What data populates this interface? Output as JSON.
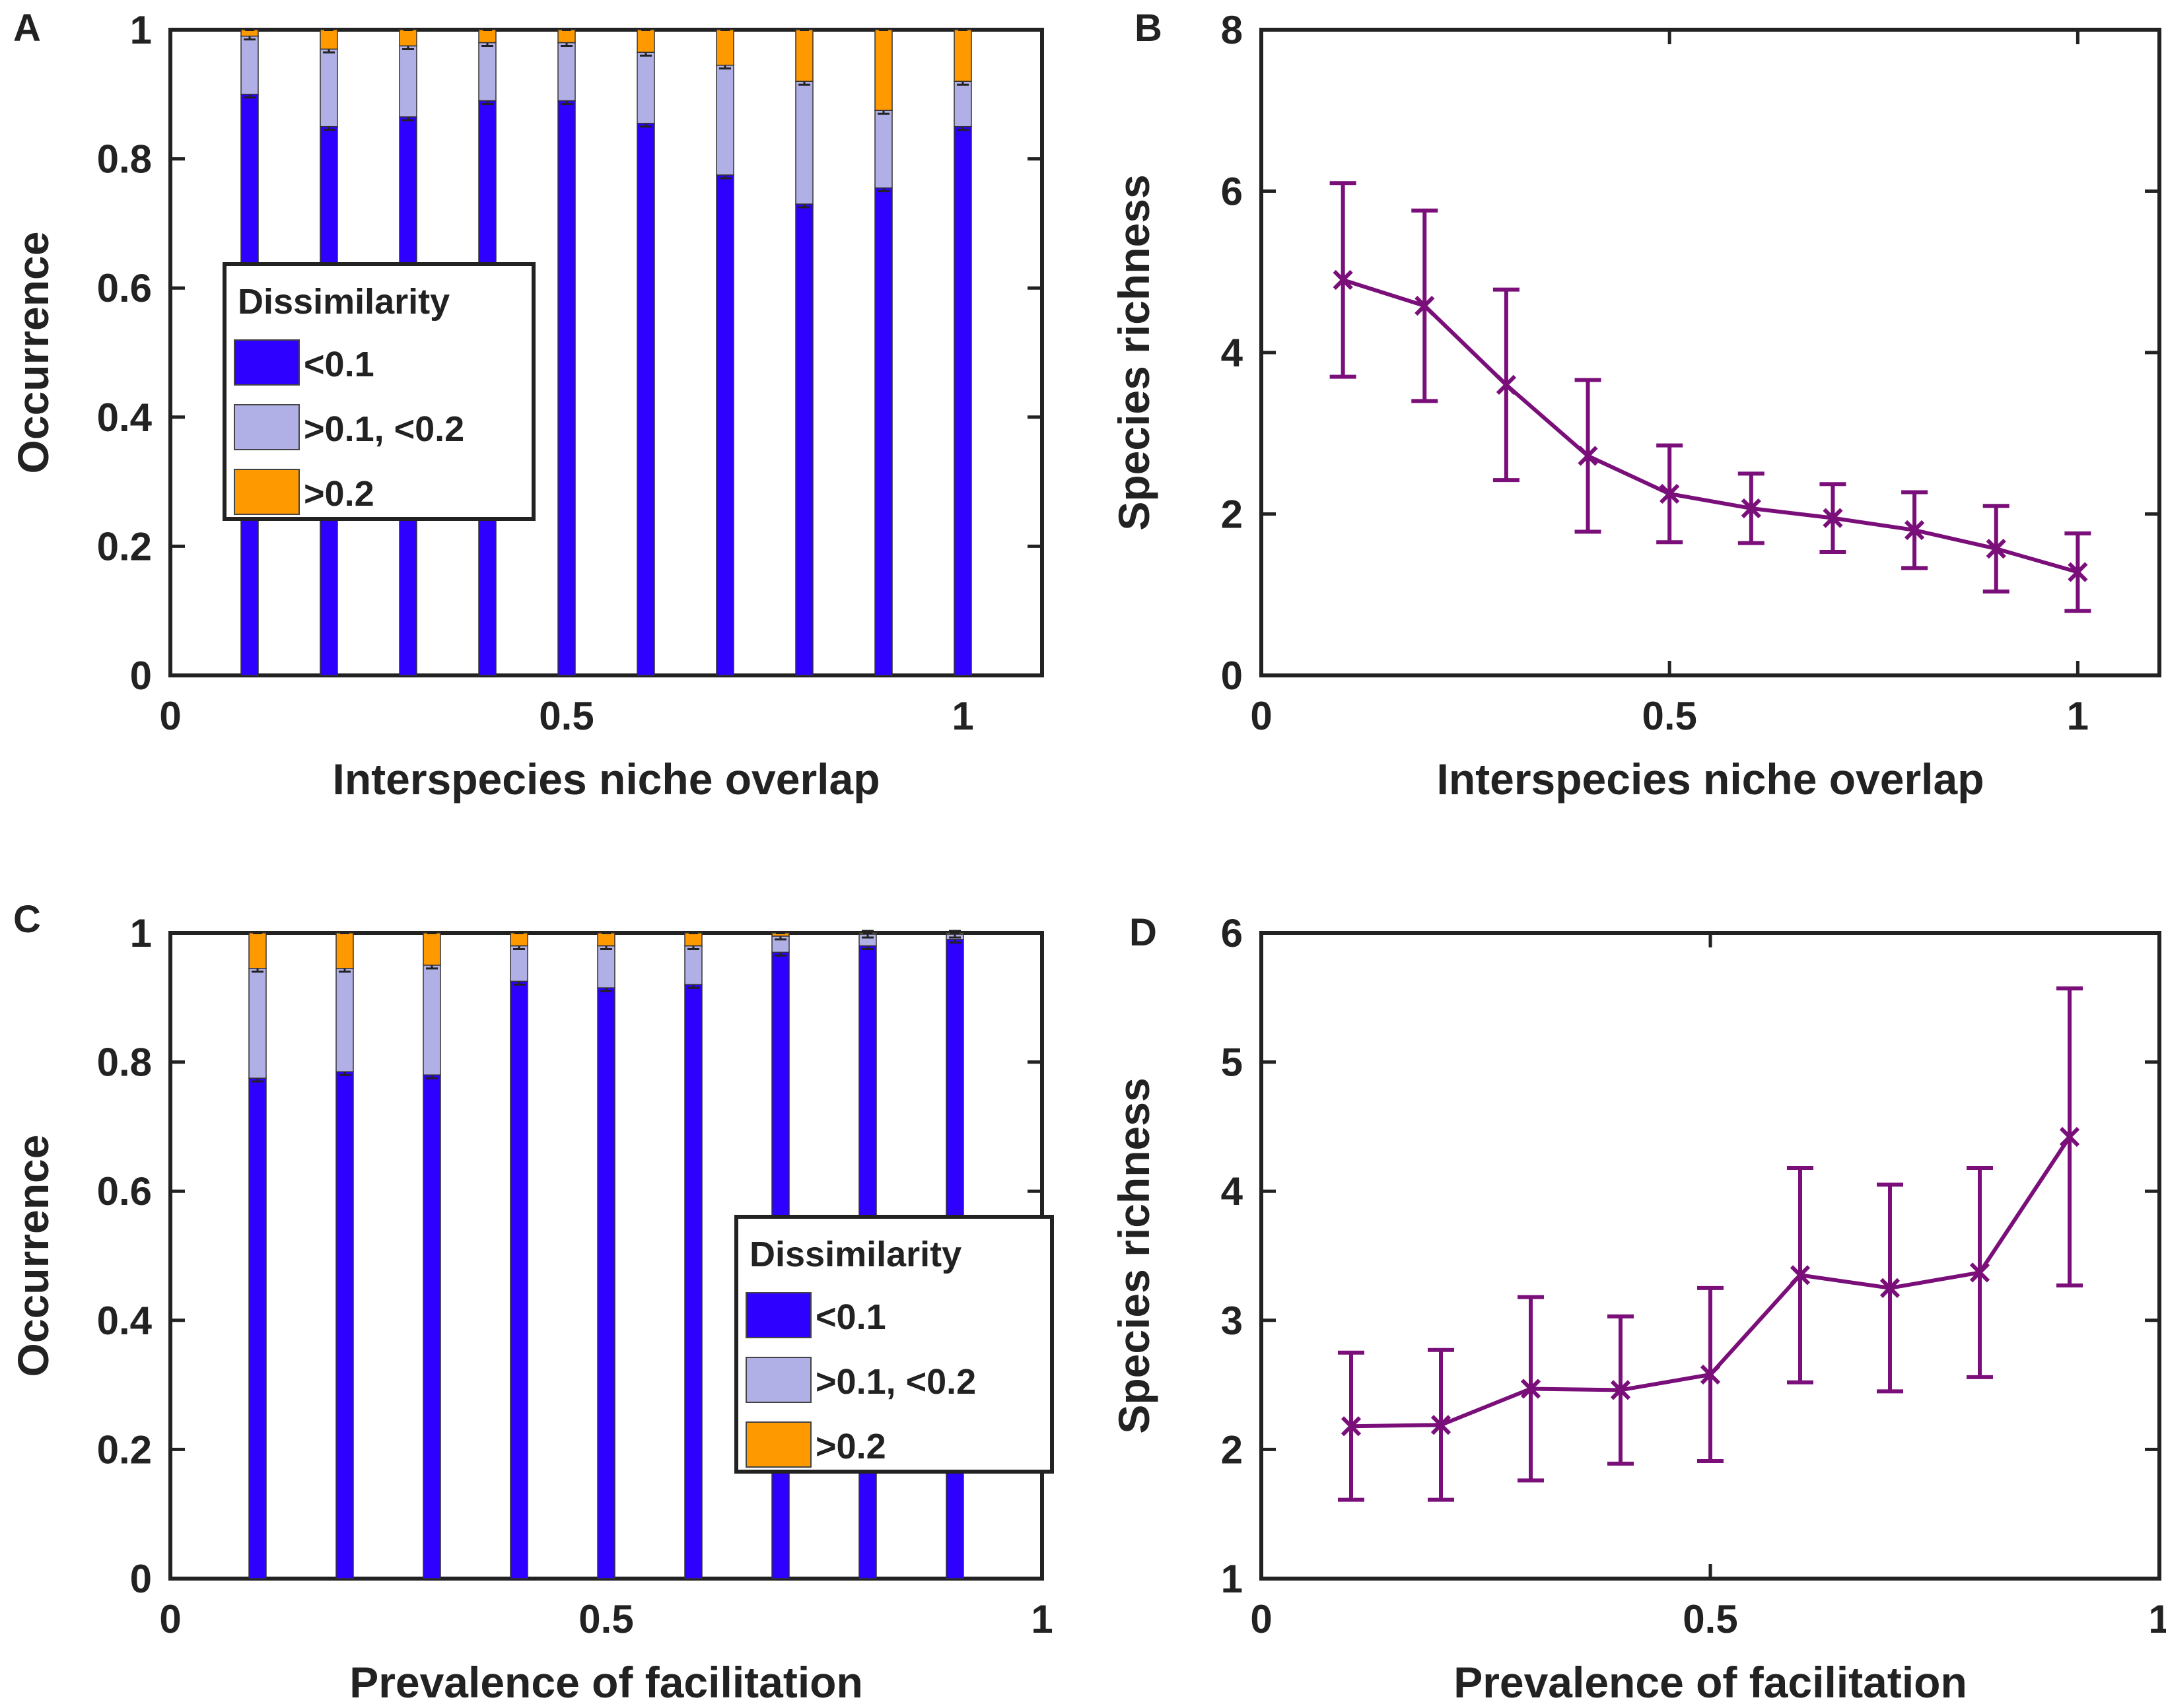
{
  "colors": {
    "lt01": "#2d00ff",
    "mid": "#b0b0e6",
    "gt02": "#ff9900",
    "line": "#7a0f7a",
    "axis": "#222222"
  },
  "legend": {
    "title": "Dissimilarity",
    "items": [
      {
        "label": "<0.1",
        "color_key": "lt01"
      },
      {
        "label": ">0.1, <0.2",
        "color_key": "mid"
      },
      {
        "label": ">0.2",
        "color_key": "gt02"
      }
    ]
  },
  "chart_data": [
    {
      "panel": "A",
      "type": "bar",
      "stacked": true,
      "xlabel": "Interspecies niche overlap",
      "ylabel": "Occurrence",
      "xlim": [
        0,
        1.1
      ],
      "ylim": [
        0,
        1
      ],
      "xticks": [
        0,
        0.5,
        1
      ],
      "xtick_labels": [
        "0",
        "0.5",
        "1"
      ],
      "yticks": [
        0,
        0.2,
        0.4,
        0.6,
        0.8,
        1
      ],
      "ytick_labels": [
        "0",
        "0.2",
        "0.4",
        "0.6",
        "0.8",
        "1"
      ],
      "legend_position": "center-left",
      "x": [
        0.1,
        0.2,
        0.3,
        0.4,
        0.5,
        0.6,
        0.7,
        0.8,
        0.9,
        1.0
      ],
      "series": [
        {
          "name": "<0.1",
          "values": [
            0.9,
            0.85,
            0.865,
            0.89,
            0.89,
            0.855,
            0.775,
            0.73,
            0.755,
            0.85
          ]
        },
        {
          "name": ">0.1, <0.2",
          "values": [
            0.09,
            0.12,
            0.11,
            0.09,
            0.09,
            0.11,
            0.17,
            0.19,
            0.12,
            0.07
          ]
        },
        {
          "name": ">0.2",
          "values": [
            0.01,
            0.03,
            0.025,
            0.02,
            0.02,
            0.035,
            0.055,
            0.08,
            0.125,
            0.08
          ]
        }
      ]
    },
    {
      "panel": "B",
      "type": "line",
      "xlabel": "Interspecies niche overlap",
      "ylabel": "Species richness",
      "xlim": [
        0,
        1.1
      ],
      "ylim": [
        0,
        8
      ],
      "xticks": [
        0,
        0.5,
        1
      ],
      "xtick_labels": [
        "0",
        "0.5",
        "1"
      ],
      "yticks": [
        0,
        2,
        4,
        6,
        8
      ],
      "ytick_labels": [
        "0",
        "2",
        "4",
        "6",
        "8"
      ],
      "marker": "x",
      "x": [
        0.1,
        0.2,
        0.3,
        0.4,
        0.5,
        0.6,
        0.7,
        0.8,
        0.9,
        1.0
      ],
      "y": [
        4.9,
        4.58,
        3.6,
        2.72,
        2.25,
        2.07,
        1.95,
        1.8,
        1.57,
        1.28
      ],
      "yerr": [
        1.2,
        1.18,
        1.18,
        0.94,
        0.6,
        0.43,
        0.42,
        0.47,
        0.53,
        0.48
      ]
    },
    {
      "panel": "C",
      "type": "bar",
      "stacked": true,
      "xlabel": "Prevalence of facilitation",
      "ylabel": "Occurrence",
      "xlim": [
        0,
        1
      ],
      "ylim": [
        0,
        1
      ],
      "xticks": [
        0,
        0.5,
        1
      ],
      "xtick_labels": [
        "0",
        "0.5",
        "1"
      ],
      "yticks": [
        0,
        0.2,
        0.4,
        0.6,
        0.8,
        1
      ],
      "ytick_labels": [
        "0",
        "0.2",
        "0.4",
        "0.6",
        "0.8",
        "1"
      ],
      "legend_position": "bottom-right",
      "x": [
        0.1,
        0.2,
        0.3,
        0.4,
        0.5,
        0.6,
        0.7,
        0.8,
        0.9
      ],
      "series": [
        {
          "name": "<0.1",
          "values": [
            0.775,
            0.785,
            0.78,
            0.925,
            0.915,
            0.92,
            0.97,
            0.98,
            0.99
          ]
        },
        {
          "name": ">0.1, <0.2",
          "values": [
            0.17,
            0.16,
            0.17,
            0.055,
            0.065,
            0.06,
            0.025,
            0.018,
            0.008
          ]
        },
        {
          "name": ">0.2",
          "values": [
            0.055,
            0.055,
            0.05,
            0.02,
            0.02,
            0.02,
            0.005,
            0.002,
            0.002
          ]
        }
      ]
    },
    {
      "panel": "D",
      "type": "line",
      "xlabel": "Prevalence of facilitation",
      "ylabel": "Species richness",
      "xlim": [
        0,
        1
      ],
      "ylim": [
        1,
        6
      ],
      "xticks": [
        0,
        0.5,
        1
      ],
      "xtick_labels": [
        "0",
        "0.5",
        "1"
      ],
      "yticks": [
        1,
        2,
        3,
        4,
        5,
        6
      ],
      "ytick_labels": [
        "1",
        "2",
        "3",
        "4",
        "5",
        "6"
      ],
      "marker": "x",
      "x": [
        0.1,
        0.2,
        0.3,
        0.4,
        0.5,
        0.6,
        0.7,
        0.8,
        0.9
      ],
      "y": [
        2.18,
        2.19,
        2.47,
        2.46,
        2.58,
        3.35,
        3.25,
        3.37,
        4.42
      ],
      "yerr": [
        0.57,
        0.58,
        0.71,
        0.57,
        0.67,
        0.83,
        0.8,
        0.81,
        1.15
      ]
    }
  ]
}
